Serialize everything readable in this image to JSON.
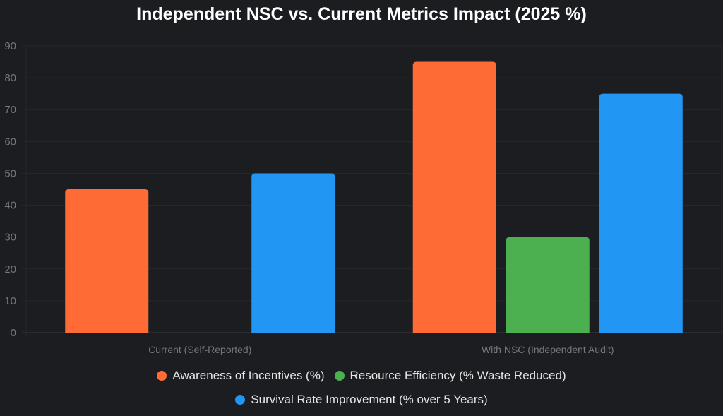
{
  "chart_data": {
    "type": "bar",
    "title": "Independent NSC vs. Current Metrics Impact (2025 %)",
    "categories": [
      "Current (Self-Reported)",
      "With NSC (Independent Audit)"
    ],
    "series": [
      {
        "name": "Awareness of Incentives (%)",
        "values": [
          45,
          85
        ],
        "color": "#ff6b35"
      },
      {
        "name": "Resource Efficiency (% Waste Reduced)",
        "values": [
          0,
          30
        ],
        "color": "#4caf50"
      },
      {
        "name": "Survival Rate Improvement (% over 5 Years)",
        "values": [
          50,
          75
        ],
        "color": "#2196f3"
      }
    ],
    "ylim": [
      0,
      90
    ],
    "yticks": [
      0,
      10,
      20,
      30,
      40,
      50,
      60,
      70,
      80,
      90
    ],
    "grid": true,
    "legend": "bottom"
  }
}
